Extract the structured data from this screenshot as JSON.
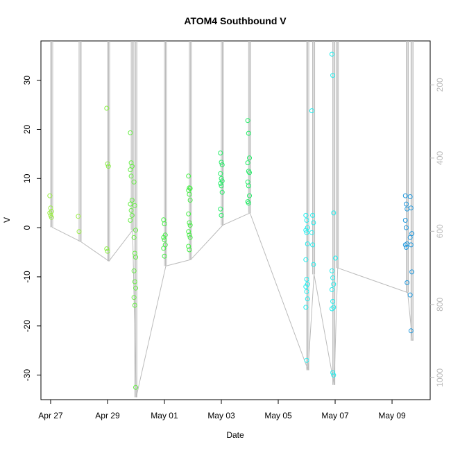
{
  "chart_data": {
    "type": "scatter",
    "title": "ATOM4 Southbound V",
    "xlabel": "Date",
    "ylabel": "V",
    "x_ticks": [
      "Apr 27",
      "Apr 29",
      "May 01",
      "May 03",
      "May 05",
      "May 07",
      "May 09"
    ],
    "xlim": [
      "2023-04-26T15:50",
      "2023-05-10T08:10"
    ],
    "ylim": [
      -35,
      38
    ],
    "y_ticks": [
      -30,
      -20,
      -10,
      0,
      10,
      20,
      30
    ],
    "y2_ticks": [
      200,
      400,
      600,
      800,
      1000
    ],
    "y2lim": [
      1060,
      80
    ],
    "grid": false,
    "colors": {
      "green": "#66ee44",
      "cyan": "#22eeee",
      "blue": "#2299dd",
      "line": "#bbbbbb"
    },
    "groups": [
      {
        "t": "2023-04-27T00:00",
        "color": "#99ee44",
        "values": [
          6.5,
          4.0,
          3.3,
          3.0,
          2.5,
          2.1
        ]
      },
      {
        "t": "2023-04-28T00:00",
        "color": "#99ee44",
        "values": [
          2.3,
          -0.8
        ]
      },
      {
        "t": "2023-04-29T00:00",
        "color": "#88ee44",
        "values": [
          24.3,
          13.0,
          12.5,
          -4.3,
          -4.8
        ]
      },
      {
        "t": "2023-04-29T20:00",
        "color": "#66ee44",
        "values": [
          19.3,
          13.2,
          12.5,
          11.8,
          10.5,
          5.6,
          4.8,
          3.5,
          2.5,
          1.5
        ]
      },
      {
        "t": "2023-04-29T23:00",
        "color": "#66ee44",
        "values": [
          9.3,
          4.5,
          -0.5,
          -2.0,
          -5.2,
          -6.0,
          -8.8,
          -11.0,
          -12.3,
          -14.2,
          -15.8,
          -32.5
        ]
      },
      {
        "t": "2023-05-01T00:00",
        "color": "#44ee44",
        "values": [
          1.6,
          0.8,
          -1.5,
          -2.0,
          -2.5,
          -3.5,
          -4.2,
          -5.8
        ]
      },
      {
        "t": "2023-05-01T21:00",
        "color": "#44ee44",
        "values": [
          10.5,
          8.1,
          8.0,
          7.6,
          6.8,
          5.6,
          2.8,
          1.0,
          0.5,
          -0.8,
          -1.5,
          -2.0,
          -3.8,
          -4.5
        ]
      },
      {
        "t": "2023-05-03T00:00",
        "color": "#22ee66",
        "values": [
          15.2,
          13.3,
          12.8,
          11.0,
          10.0,
          9.5,
          9.0,
          8.5,
          7.2,
          3.8,
          2.5
        ]
      },
      {
        "t": "2023-05-03T23:00",
        "color": "#22ee66",
        "values": [
          21.8,
          19.2,
          14.2,
          13.2,
          11.5,
          11.2,
          9.3,
          8.5,
          6.5,
          5.3,
          5.0
        ]
      },
      {
        "t": "2023-05-06T00:00",
        "color": "#22eeee",
        "values": [
          2.5,
          1.5,
          0.0,
          -0.5,
          -1.0,
          -3.3,
          -6.5,
          -10.5,
          -11.5,
          -12.0,
          -13.0,
          -14.5,
          -16.2,
          -27.0
        ]
      },
      {
        "t": "2023-05-06T05:00",
        "color": "#22eeee",
        "values": [
          23.8,
          2.5,
          1.0,
          -1.0,
          -3.5,
          -7.5
        ]
      },
      {
        "t": "2023-05-06T22:00",
        "color": "#22eeee",
        "values": [
          35.3,
          31.0,
          3.0,
          -8.8,
          -10.2,
          -11.5,
          -12.6,
          -15.0,
          -16.2,
          -16.5,
          -29.5,
          -30.0
        ]
      },
      {
        "t": "2023-05-07T01:00",
        "color": "#22eeee",
        "values": [
          -6.2
        ]
      },
      {
        "t": "2023-05-09T12:00",
        "color": "#2299dd",
        "values": [
          6.5,
          4.8,
          3.8,
          1.5,
          0.0,
          -3.3,
          -3.5,
          -4.0,
          -11.2
        ]
      },
      {
        "t": "2023-05-09T16:00",
        "color": "#2299dd",
        "values": [
          6.3,
          4.0,
          -1.2,
          -2.0,
          -3.5,
          -9.0,
          -13.7,
          -21.0
        ]
      }
    ]
  }
}
